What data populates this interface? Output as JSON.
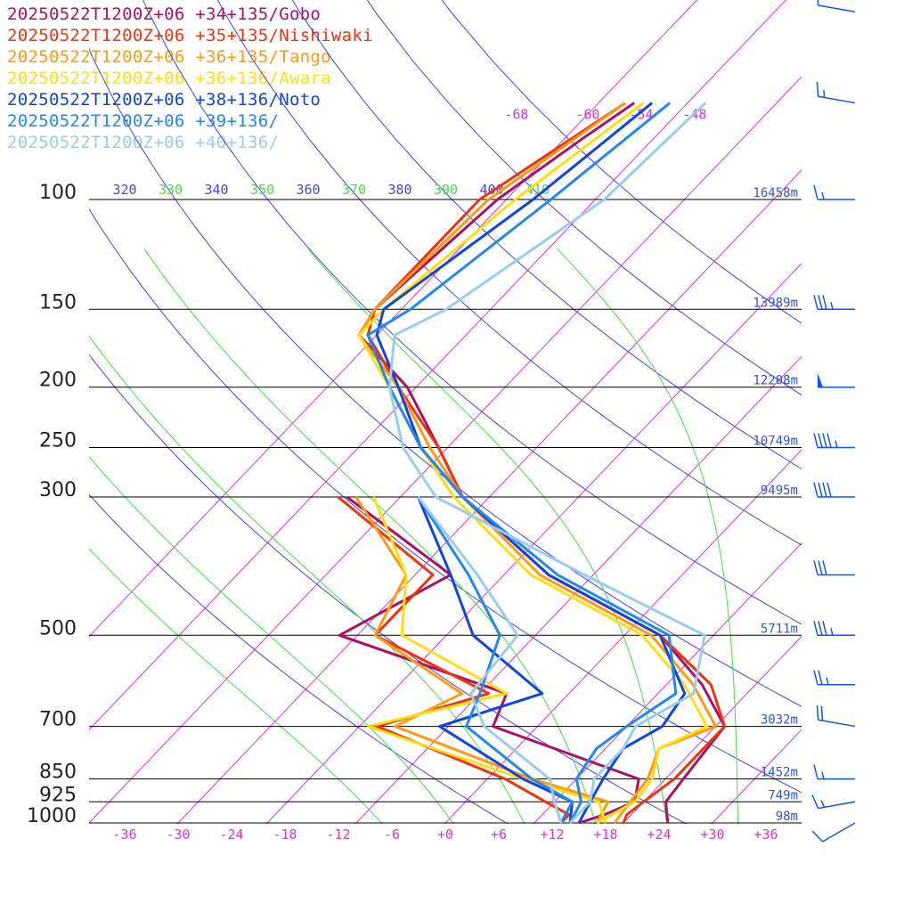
{
  "legend": [
    {
      "label": "20250522T1200Z+06 +34+135/Gobo",
      "color": "#aa1166"
    },
    {
      "label": "20250522T1200Z+06 +35+135/Nishiwaki",
      "color": "#ee3311"
    },
    {
      "label": "20250522T1200Z+06 +36+135/Tango",
      "color": "#ff9911"
    },
    {
      "label": "20250522T1200Z+06 +36+136/Awara",
      "color": "#ffdd11"
    },
    {
      "label": "20250522T1200Z+06 +38+136/Noto",
      "color": "#1144dd"
    },
    {
      "label": "20250522T1200Z+06 +39+136/",
      "color": "#2288ee"
    },
    {
      "label": "20250522T1200Z+06 +40+136/",
      "color": "#99ccee"
    }
  ],
  "chart_data": {
    "type": "line",
    "title": "",
    "xlabel": "",
    "ylabel": "",
    "x_scale": "skew-T temperature (°C)",
    "y_scale": "log pressure (hPa)",
    "xlim": [
      -40,
      40
    ],
    "ylim": [
      1000,
      100
    ],
    "pressure_levels": [
      100,
      150,
      200,
      250,
      300,
      500,
      700,
      850,
      925,
      1000
    ],
    "pressure_level_labels": [
      "100",
      "150",
      "200",
      "250",
      "300",
      "500",
      "700",
      "850",
      "925",
      "1000"
    ],
    "temperature_ticks": [
      "-36",
      "-30",
      "-24",
      "-18",
      "-12",
      "-6",
      "+0",
      "+6",
      "+12",
      "+18",
      "+24",
      "+30",
      "+36"
    ],
    "upper_temperature_labels": [
      "-68",
      "-60",
      "-54",
      "-48"
    ],
    "theta_labels": [
      "320",
      "330",
      "340",
      "350",
      "360",
      "370",
      "380",
      "390",
      "400",
      "410"
    ],
    "theta_label_colors": [
      "#4444dd",
      "#44dd44",
      "#4444dd",
      "#44dd44",
      "#4444dd",
      "#44dd44",
      "#4444dd",
      "#44dd44",
      "#4444dd",
      "#44dd44"
    ],
    "heights": [
      {
        "p": 100,
        "label": "16458m"
      },
      {
        "p": 150,
        "label": "13989m"
      },
      {
        "p": 200,
        "label": "12208m"
      },
      {
        "p": 250,
        "label": "10749m"
      },
      {
        "p": 300,
        "label": "9495m"
      },
      {
        "p": 500,
        "label": "5711m"
      },
      {
        "p": 700,
        "label": "3032m"
      },
      {
        "p": 850,
        "label": "1452m"
      },
      {
        "p": 925,
        "label": "749m"
      },
      {
        "p": 1000,
        "label": "98m"
      }
    ],
    "grid_colors": {
      "isotherm": "#dd33dd",
      "dry_adiabat": "#4444dd",
      "moist_adiabat": "#44dd44",
      "isobar": "#000000",
      "wind": "#1155ee"
    },
    "isotherms": [
      -60,
      -50,
      -40,
      -30,
      -20,
      -10,
      0,
      10,
      20,
      30,
      40
    ],
    "dry_adiabats": [
      280,
      300,
      320,
      340,
      360,
      380,
      400,
      420,
      440
    ],
    "moist_adiabats": [
      266,
      274,
      282,
      290,
      298,
      306
    ],
    "series": [
      {
        "name": "Gobo",
        "color": "#aa1166",
        "temperature": [
          [
            1000,
            25
          ],
          [
            970,
            24
          ],
          [
            925,
            22.5
          ],
          [
            850,
            22
          ],
          [
            700,
            21
          ],
          [
            600,
            14
          ],
          [
            500,
            4
          ],
          [
            400,
            -15
          ],
          [
            300,
            -33
          ],
          [
            250,
            -41
          ],
          [
            200,
            -51
          ],
          [
            165,
            -62
          ],
          [
            150,
            -63
          ],
          [
            100,
            -61
          ],
          [
            80,
            -58
          ],
          [
            70,
            -56
          ]
        ],
        "dewpoint": [
          [
            1000,
            15
          ],
          [
            970,
            17
          ],
          [
            925,
            19
          ],
          [
            850,
            17
          ],
          [
            700,
            -5
          ],
          [
            620,
            -7
          ],
          [
            500,
            -32
          ],
          [
            400,
            -26
          ],
          [
            300,
            -46
          ]
        ]
      },
      {
        "name": "Nishiwaki",
        "color": "#ee3311",
        "temperature": [
          [
            1000,
            20
          ],
          [
            970,
            19.5
          ],
          [
            925,
            20
          ],
          [
            850,
            21
          ],
          [
            700,
            21
          ],
          [
            600,
            15
          ],
          [
            500,
            4
          ],
          [
            400,
            -15
          ],
          [
            300,
            -33
          ],
          [
            250,
            -41
          ],
          [
            200,
            -52
          ],
          [
            165,
            -61
          ],
          [
            150,
            -63
          ],
          [
            100,
            -63
          ],
          [
            70,
            -57
          ]
        ],
        "dewpoint": [
          [
            1000,
            13
          ],
          [
            970,
            13
          ],
          [
            925,
            9
          ],
          [
            850,
            2
          ],
          [
            700,
            -18
          ],
          [
            620,
            -9
          ],
          [
            500,
            -28
          ],
          [
            400,
            -28
          ],
          [
            300,
            -47
          ]
        ]
      },
      {
        "name": "Tango",
        "color": "#ff9911",
        "temperature": [
          [
            1000,
            19
          ],
          [
            925,
            18.5
          ],
          [
            850,
            18
          ],
          [
            760,
            16
          ],
          [
            700,
            20
          ],
          [
            600,
            13
          ],
          [
            500,
            3
          ],
          [
            400,
            -16
          ],
          [
            300,
            -33
          ],
          [
            250,
            -42
          ],
          [
            200,
            -52
          ],
          [
            165,
            -62
          ],
          [
            150,
            -63
          ],
          [
            100,
            -62
          ],
          [
            70,
            -57
          ]
        ],
        "dewpoint": [
          [
            1000,
            17
          ],
          [
            925,
            16
          ],
          [
            850,
            5
          ],
          [
            700,
            -16
          ],
          [
            620,
            -12
          ],
          [
            500,
            -28
          ],
          [
            400,
            -31
          ],
          [
            300,
            -45
          ]
        ]
      },
      {
        "name": "Awara",
        "color": "#ffdd11",
        "temperature": [
          [
            1000,
            17
          ],
          [
            925,
            19
          ],
          [
            850,
            18.5
          ],
          [
            760,
            16
          ],
          [
            700,
            19
          ],
          [
            600,
            12
          ],
          [
            500,
            2
          ],
          [
            400,
            -17
          ],
          [
            300,
            -34
          ],
          [
            250,
            -43
          ],
          [
            200,
            -53
          ],
          [
            165,
            -62
          ],
          [
            150,
            -62
          ],
          [
            100,
            -59
          ],
          [
            70,
            -55
          ]
        ],
        "dewpoint": [
          [
            1000,
            18
          ],
          [
            925,
            15
          ],
          [
            850,
            4
          ],
          [
            700,
            -19
          ],
          [
            620,
            -7
          ],
          [
            500,
            -25
          ],
          [
            400,
            -31
          ],
          [
            300,
            -43
          ]
        ]
      },
      {
        "name": "Noto",
        "color": "#1144dd",
        "temperature": [
          [
            1000,
            15
          ],
          [
            925,
            14
          ],
          [
            850,
            13
          ],
          [
            760,
            12
          ],
          [
            700,
            14
          ],
          [
            620,
            13
          ],
          [
            500,
            4
          ],
          [
            400,
            -15
          ],
          [
            300,
            -33
          ],
          [
            250,
            -43
          ],
          [
            200,
            -52
          ],
          [
            165,
            -60
          ],
          [
            150,
            -62
          ],
          [
            100,
            -57
          ],
          [
            70,
            -54
          ]
        ],
        "dewpoint": [
          [
            1000,
            14
          ],
          [
            925,
            12
          ],
          [
            850,
            4
          ],
          [
            700,
            -11
          ],
          [
            620,
            -3
          ],
          [
            500,
            -17
          ],
          [
            400,
            -26
          ],
          [
            300,
            -38
          ]
        ]
      },
      {
        "name": "",
        "color": "#2288ee",
        "temperature": [
          [
            1000,
            14
          ],
          [
            925,
            13
          ],
          [
            850,
            10
          ],
          [
            760,
            9
          ],
          [
            700,
            10
          ],
          [
            620,
            12
          ],
          [
            500,
            5
          ],
          [
            400,
            -14
          ],
          [
            300,
            -33
          ],
          [
            250,
            -43
          ],
          [
            200,
            -53
          ],
          [
            165,
            -61
          ],
          [
            150,
            -59
          ],
          [
            100,
            -55
          ],
          [
            70,
            -52
          ]
        ],
        "dewpoint": [
          [
            1000,
            13
          ],
          [
            925,
            12
          ],
          [
            850,
            5
          ],
          [
            700,
            -8
          ],
          [
            620,
            -10
          ],
          [
            500,
            -14
          ],
          [
            400,
            -24
          ],
          [
            300,
            -38
          ]
        ]
      },
      {
        "name": "",
        "color": "#99ccee",
        "temperature": [
          [
            1000,
            14
          ],
          [
            925,
            14
          ],
          [
            850,
            12
          ],
          [
            760,
            12
          ],
          [
            700,
            11
          ],
          [
            620,
            14
          ],
          [
            500,
            9
          ],
          [
            400,
            -11
          ],
          [
            300,
            -36
          ],
          [
            250,
            -45
          ],
          [
            200,
            -53
          ],
          [
            165,
            -58
          ],
          [
            150,
            -55
          ],
          [
            100,
            -49
          ],
          [
            70,
            -48
          ]
        ],
        "dewpoint": [
          [
            1000,
            13
          ],
          [
            925,
            10
          ],
          [
            850,
            7
          ],
          [
            700,
            -6
          ],
          [
            620,
            -11
          ],
          [
            500,
            -12
          ],
          [
            400,
            -23
          ],
          [
            300,
            -38
          ]
        ]
      }
    ],
    "wind_barbs": [
      {
        "p": 1000,
        "dir": 240,
        "speed_kt": 10
      },
      {
        "p": 925,
        "dir": 260,
        "speed_kt": 15
      },
      {
        "p": 850,
        "dir": 270,
        "speed_kt": 15
      },
      {
        "p": 700,
        "dir": 280,
        "speed_kt": 20
      },
      {
        "p": 600,
        "dir": 270,
        "speed_kt": 25
      },
      {
        "p": 500,
        "dir": 270,
        "speed_kt": 35
      },
      {
        "p": 400,
        "dir": 270,
        "speed_kt": 30
      },
      {
        "p": 300,
        "dir": 270,
        "speed_kt": 40
      },
      {
        "p": 250,
        "dir": 270,
        "speed_kt": 45
      },
      {
        "p": 200,
        "dir": 270,
        "speed_kt": 50
      },
      {
        "p": 150,
        "dir": 270,
        "speed_kt": 35
      },
      {
        "p": 100,
        "dir": 270,
        "speed_kt": 15
      },
      {
        "p": 70,
        "dir": 280,
        "speed_kt": 15
      },
      {
        "p": 50,
        "dir": 280,
        "speed_kt": 10
      }
    ]
  }
}
